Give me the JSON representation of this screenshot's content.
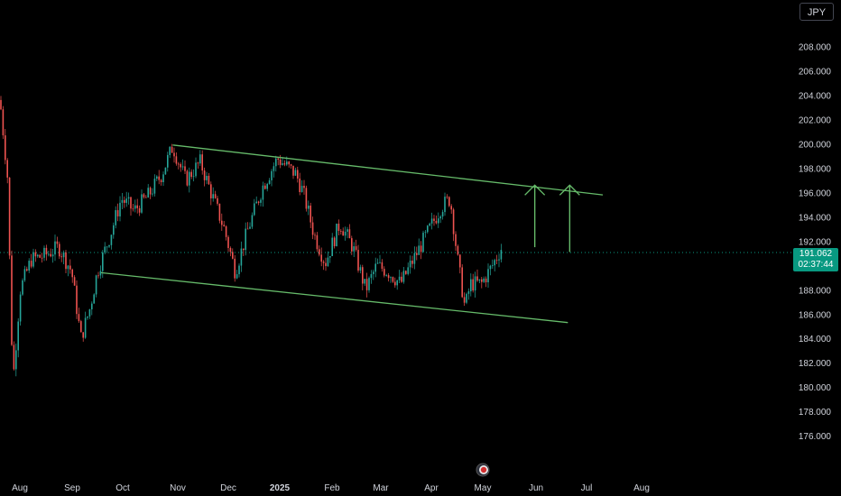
{
  "currency_button": "JPY",
  "price_label": {
    "price": "191.062",
    "countdown": "02:37:44",
    "color": "#089981"
  },
  "chart_data": {
    "type": "candlestick",
    "y_ticks": [
      "208.000",
      "206.000",
      "204.000",
      "202.000",
      "200.000",
      "198.000",
      "196.000",
      "194.000",
      "192.000",
      "190.000",
      "188.000",
      "186.000",
      "184.000",
      "182.000",
      "180.000",
      "178.000",
      "176.000"
    ],
    "ylim": [
      174.6,
      209.6
    ],
    "x_ticks": [
      {
        "label": "Aug",
        "bold": false
      },
      {
        "label": "Sep",
        "bold": false
      },
      {
        "label": "Oct",
        "bold": false
      },
      {
        "label": "Nov",
        "bold": false
      },
      {
        "label": "Dec",
        "bold": false
      },
      {
        "label": "2025",
        "bold": true
      },
      {
        "label": "Feb",
        "bold": false
      },
      {
        "label": "Mar",
        "bold": false
      },
      {
        "label": "Apr",
        "bold": false
      },
      {
        "label": "May",
        "bold": false
      },
      {
        "label": "Jun",
        "bold": false
      },
      {
        "label": "Jul",
        "bold": false
      },
      {
        "label": "Aug",
        "bold": false
      }
    ],
    "current_price": 191.062,
    "series": [
      {
        "x": "2024-07-29",
        "close": 203.6
      },
      {
        "x": "2024-08-02",
        "close": 197.5
      },
      {
        "x": "2024-08-05",
        "close": 180.3
      },
      {
        "x": "2024-08-09",
        "close": 188.0
      },
      {
        "x": "2024-08-15",
        "close": 190.5
      },
      {
        "x": "2024-08-22",
        "close": 190.8
      },
      {
        "x": "2024-08-30",
        "close": 191.5
      },
      {
        "x": "2024-09-06",
        "close": 189.5
      },
      {
        "x": "2024-09-11",
        "close": 184.0
      },
      {
        "x": "2024-09-16",
        "close": 186.5
      },
      {
        "x": "2024-09-20",
        "close": 189.5
      },
      {
        "x": "2024-09-27",
        "close": 192.5
      },
      {
        "x": "2024-10-03",
        "close": 195.5
      },
      {
        "x": "2024-10-10",
        "close": 194.5
      },
      {
        "x": "2024-10-18",
        "close": 195.8
      },
      {
        "x": "2024-10-25",
        "close": 197.5
      },
      {
        "x": "2024-10-31",
        "close": 199.8
      },
      {
        "x": "2024-11-07",
        "close": 197.0
      },
      {
        "x": "2024-11-15",
        "close": 198.5
      },
      {
        "x": "2024-11-22",
        "close": 195.5
      },
      {
        "x": "2024-11-28",
        "close": 193.0
      },
      {
        "x": "2024-12-04",
        "close": 189.5
      },
      {
        "x": "2024-12-11",
        "close": 193.0
      },
      {
        "x": "2024-12-19",
        "close": 196.5
      },
      {
        "x": "2024-12-27",
        "close": 198.8
      },
      {
        "x": "2025-01-06",
        "close": 197.5
      },
      {
        "x": "2025-01-10",
        "close": 196.0
      },
      {
        "x": "2025-01-16",
        "close": 192.5
      },
      {
        "x": "2025-01-22",
        "close": 190.2
      },
      {
        "x": "2025-01-30",
        "close": 193.5
      },
      {
        "x": "2025-02-06",
        "close": 191.5
      },
      {
        "x": "2025-02-13",
        "close": 188.0
      },
      {
        "x": "2025-02-19",
        "close": 190.0
      },
      {
        "x": "2025-02-25",
        "close": 189.5
      },
      {
        "x": "2025-03-04",
        "close": 188.5
      },
      {
        "x": "2025-03-11",
        "close": 190.5
      },
      {
        "x": "2025-03-18",
        "close": 192.5
      },
      {
        "x": "2025-03-26",
        "close": 194.8
      },
      {
        "x": "2025-03-31",
        "close": 195.5
      },
      {
        "x": "2025-04-04",
        "close": 190.5
      },
      {
        "x": "2025-04-08",
        "close": 186.5
      },
      {
        "x": "2025-04-11",
        "close": 188.5
      },
      {
        "x": "2025-04-17",
        "close": 188.5
      },
      {
        "x": "2025-04-23",
        "close": 190.0
      },
      {
        "x": "2025-04-28",
        "close": 191.5
      }
    ],
    "trend_lines": [
      {
        "name": "upper channel",
        "color": "#66bb6a",
        "from": {
          "x": "2024-10-31",
          "y": 199.9
        },
        "to": {
          "x": "2025-06-22",
          "y": 195.8
        }
      },
      {
        "name": "lower channel",
        "color": "#66bb6a",
        "from": {
          "x": "2024-09-22",
          "y": 189.4
        },
        "to": {
          "x": "2025-06-03",
          "y": 185.3
        }
      }
    ],
    "arrows": [
      {
        "color": "#66bb6a",
        "x": "2025-05-16",
        "from": 191.5,
        "to": 196.6
      },
      {
        "color": "#66bb6a",
        "x": "2025-06-04",
        "from": 191.1,
        "to": 196.6
      }
    ],
    "grid": false
  }
}
